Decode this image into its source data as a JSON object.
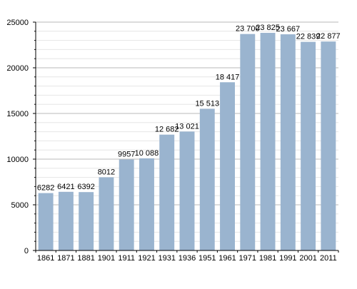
{
  "chart_data": {
    "type": "bar",
    "title": "",
    "xlabel": "",
    "ylabel": "",
    "ylim": [
      0,
      25000
    ],
    "y_ticks": [
      0,
      5000,
      10000,
      15000,
      20000,
      25000
    ],
    "y_tick_labels": [
      "0",
      "5000",
      "10000",
      "15000",
      "20000",
      "25000"
    ],
    "grid": true,
    "categories": [
      "1861",
      "1871",
      "1881",
      "1901",
      "1911",
      "1921",
      "1931",
      "1936",
      "1951",
      "1961",
      "1971",
      "1981",
      "1991",
      "2001",
      "2011"
    ],
    "values": [
      6282,
      6421,
      6392,
      8012,
      9957,
      10088,
      12682,
      13021,
      15513,
      18417,
      23700,
      23825,
      23667,
      22839,
      22877
    ],
    "value_labels": [
      "6282",
      "6421",
      "6392",
      "8012",
      "9957",
      "10 088",
      "12 682",
      "13 021",
      "15 513",
      "18 417",
      "23 700",
      "23 825",
      "23 667",
      "22 839",
      "22 877"
    ],
    "colors": {
      "bar": "#9ab4cf",
      "gridline": "#b8b8b8",
      "minor_gridline": "#e6e6e6",
      "axis": "#000000"
    }
  }
}
